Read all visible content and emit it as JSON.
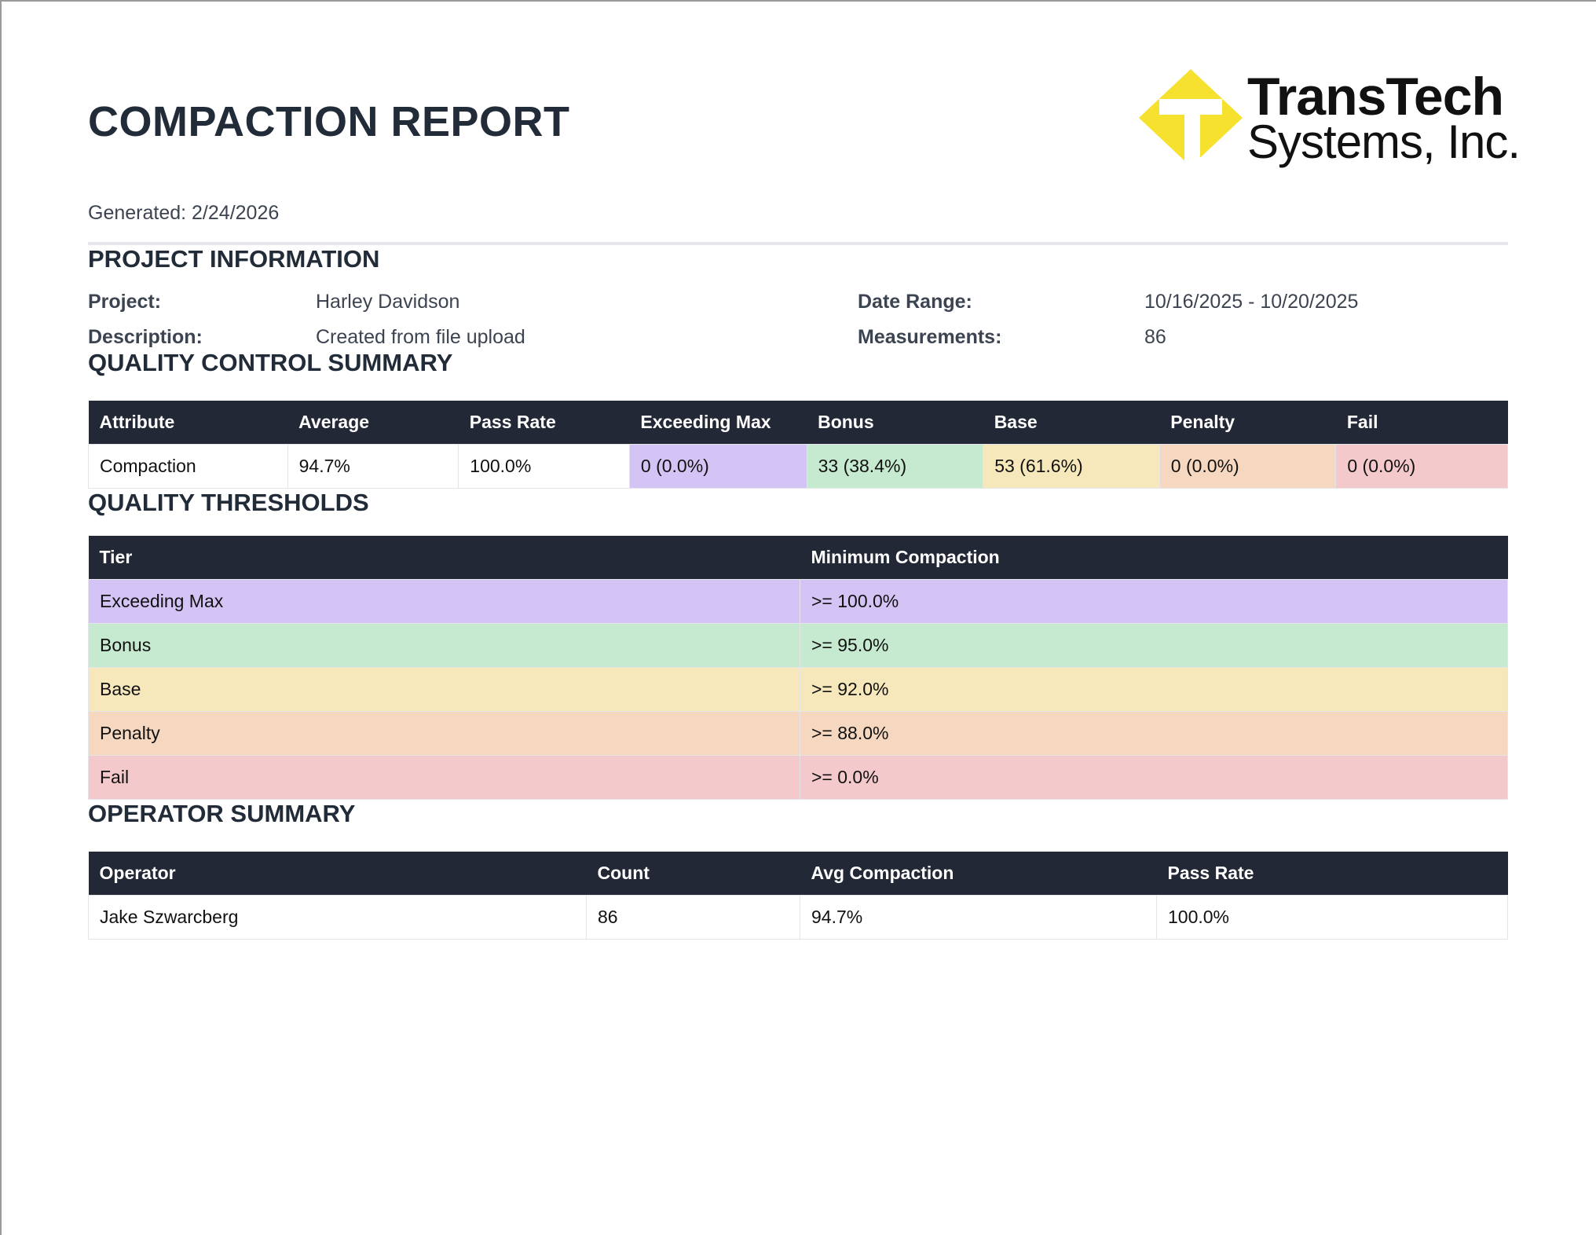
{
  "report": {
    "title": "COMPACTION REPORT",
    "generated": "Generated: 2/24/2026"
  },
  "logo": {
    "line1": "TransTech",
    "line2": "Systems, Inc.",
    "colors": {
      "mark": "#f5e12e"
    }
  },
  "project_info": {
    "heading": "PROJECT INFORMATION",
    "project_label": "Project:",
    "project_value": "Harley Davidson",
    "description_label": "Description:",
    "description_value": "Created from file upload",
    "date_range_label": "Date Range:",
    "date_range_value": "10/16/2025 - 10/20/2025",
    "measurements_label": "Measurements:",
    "measurements_value": "86"
  },
  "qc_summary": {
    "heading": "QUALITY CONTROL SUMMARY",
    "columns": [
      "Attribute",
      "Average",
      "Pass Rate",
      "Exceeding Max",
      "Bonus",
      "Base",
      "Penalty",
      "Fail"
    ],
    "row": [
      "Compaction",
      "94.7%",
      "100.0%",
      "0 (0.0%)",
      "33 (38.4%)",
      "53 (61.6%)",
      "0 (0.0%)",
      "0 (0.0%)"
    ]
  },
  "thresholds": {
    "heading": "QUALITY THRESHOLDS",
    "columns": [
      "Tier",
      "Minimum Compaction"
    ],
    "rows": [
      [
        "Exceeding Max",
        ">= 100.0%"
      ],
      [
        "Bonus",
        ">= 95.0%"
      ],
      [
        "Base",
        ">= 92.0%"
      ],
      [
        "Penalty",
        ">= 88.0%"
      ],
      [
        "Fail",
        ">= 0.0%"
      ]
    ]
  },
  "operator_summary": {
    "heading": "OPERATOR SUMMARY",
    "columns": [
      "Operator",
      "Count",
      "Avg Compaction",
      "Pass Rate"
    ],
    "row": [
      "Jake Szwarcberg",
      "86",
      "94.7%",
      "100.0%"
    ]
  },
  "tier_colors": {
    "exceeding_max": "#d4c4f5",
    "bonus": "#c6ead0",
    "base": "#f6e8bb",
    "penalty": "#f5d8bf",
    "fail": "#f3c9cb"
  }
}
